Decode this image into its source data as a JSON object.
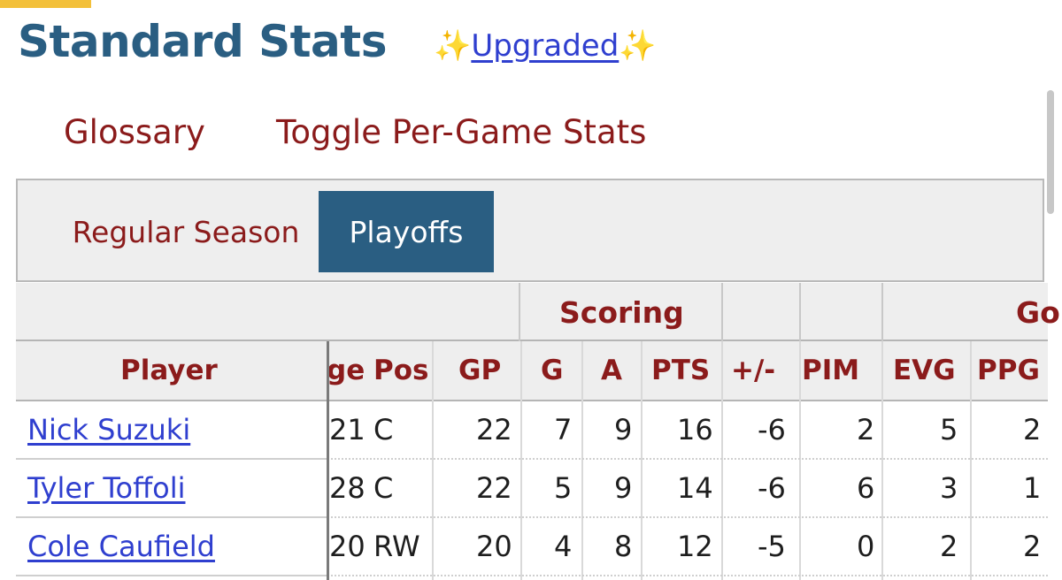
{
  "section": {
    "title": "Standard Stats",
    "sparkle_left": "✨",
    "upgraded_link": "Upgraded",
    "sparkle_right": "✨"
  },
  "links": {
    "glossary": "Glossary",
    "toggle_per_game": "Toggle Per-Game Stats"
  },
  "tabs": {
    "regular_season": "Regular Season",
    "playoffs": "Playoffs",
    "active": "Playoffs"
  },
  "table": {
    "over_headers": {
      "scoring": "Scoring",
      "goals_partial": "Go"
    },
    "columns": {
      "player": "Player",
      "age_partial": "ge",
      "pos": "Pos",
      "gp": "GP",
      "g": "G",
      "a": "A",
      "pts": "PTS",
      "plus_minus": "+/-",
      "pim": "PIM",
      "evg": "EVG",
      "ppg": "PPG"
    },
    "rows": [
      {
        "player": "Nick Suzuki",
        "age": "21",
        "pos": "C",
        "gp": "22",
        "g": "7",
        "a": "9",
        "pts": "16",
        "plus_minus": "-6",
        "pim": "2",
        "evg": "5",
        "ppg": "2"
      },
      {
        "player": "Tyler Toffoli",
        "age": "28",
        "pos": "C",
        "gp": "22",
        "g": "5",
        "a": "9",
        "pts": "14",
        "plus_minus": "-6",
        "pim": "6",
        "evg": "3",
        "ppg": "1"
      },
      {
        "player": "Cole Caufield",
        "age": "20",
        "pos": "RW",
        "gp": "20",
        "g": "4",
        "a": "8",
        "pts": "12",
        "plus_minus": "-5",
        "pim": "0",
        "evg": "2",
        "ppg": "2"
      }
    ]
  },
  "colors": {
    "title_blue": "#2a5e82",
    "link_red": "#8b1b1b",
    "active_tab_bg": "#2a5e82",
    "hyperlink_blue": "#2f3fcf",
    "accent_yellow": "#f3c03a"
  }
}
